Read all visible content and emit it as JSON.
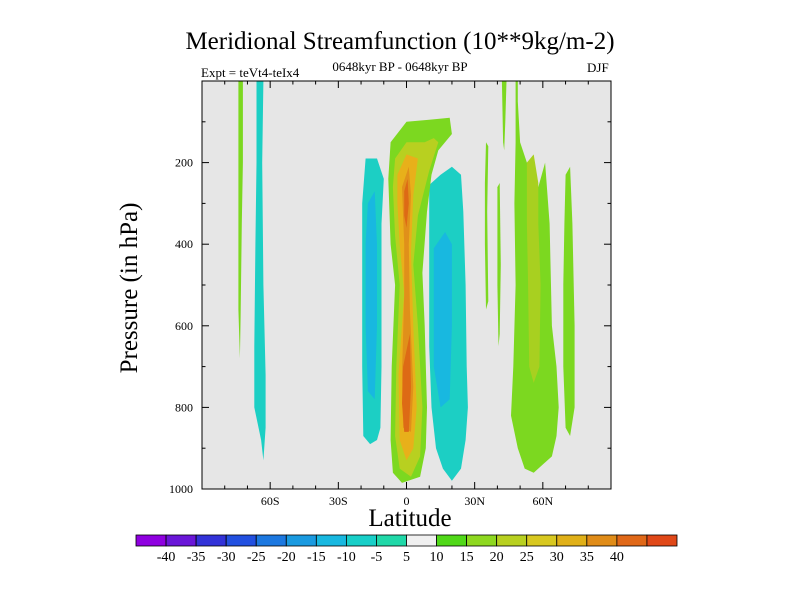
{
  "chart_data": {
    "type": "heatmap",
    "title": "Meridional Streamfunction (10**9kg/m-2)",
    "experiment_label": "Expt = teVt4-teIx4",
    "subtitle": "0648kyr BP - 0648kyr BP",
    "season": "DJF",
    "xlabel": "Latitude",
    "ylabel": "Pressure (in hPa)",
    "x_ticks": [
      "60S",
      "30S",
      "0",
      "30N",
      "60N"
    ],
    "x_tick_values": [
      -60,
      -30,
      0,
      30,
      60
    ],
    "xlim": [
      -90,
      90
    ],
    "y_ticks": [
      "200",
      "400",
      "600",
      "800",
      "1000"
    ],
    "y_tick_values": [
      200,
      400,
      600,
      800,
      1000
    ],
    "ylim": [
      1000,
      0
    ],
    "colorbar": {
      "labels": [
        "-40",
        "-35",
        "-30",
        "-25",
        "-20",
        "-15",
        "-10",
        "-5",
        "5",
        "10",
        "15",
        "20",
        "25",
        "30",
        "35",
        "40"
      ],
      "colors": [
        "#8f00e0",
        "#6a16d8",
        "#3232d8",
        "#2250e0",
        "#1c78e0",
        "#1a9ae0",
        "#18b8e0",
        "#18cfc8",
        "#20d8a8",
        "#f0f0f0",
        "#50d818",
        "#8ed820",
        "#b8d020",
        "#d8c820",
        "#e0b018",
        "#e08c18",
        "#e06818",
        "#e04818"
      ]
    },
    "regions": [
      {
        "name": "cell-70s-green",
        "value": 7,
        "color": "#7cd820",
        "points": [
          [
            -74,
            0
          ],
          [
            -72,
            0
          ],
          [
            -72,
            200
          ],
          [
            -72.5,
            350
          ],
          [
            -73,
            580
          ],
          [
            -73.3,
            680
          ],
          [
            -74,
            560
          ],
          [
            -74,
            300
          ]
        ]
      },
      {
        "name": "cell-65s-cyan",
        "value": -7,
        "color": "#1ccfc4",
        "points": [
          [
            -66,
            0
          ],
          [
            -63,
            0
          ],
          [
            -63.5,
            200
          ],
          [
            -63,
            500
          ],
          [
            -62,
            720
          ],
          [
            -62,
            850
          ],
          [
            -63,
            930
          ],
          [
            -64,
            880
          ],
          [
            -67,
            800
          ],
          [
            -67,
            650
          ],
          [
            -66.5,
            400
          ],
          [
            -66,
            200
          ]
        ]
      },
      {
        "name": "cell-20s-cyan",
        "value": -8,
        "color": "#1ccfc4",
        "points": [
          [
            -18,
            190
          ],
          [
            -13,
            190
          ],
          [
            -10,
            240
          ],
          [
            -11,
            350
          ],
          [
            -11,
            500
          ],
          [
            -11,
            700
          ],
          [
            -11.5,
            850
          ],
          [
            -13,
            880
          ],
          [
            -16,
            890
          ],
          [
            -19,
            870
          ],
          [
            -19.5,
            700
          ],
          [
            -19.5,
            500
          ],
          [
            -19.5,
            300
          ]
        ]
      },
      {
        "name": "cell-20s-inner",
        "value": -13,
        "color": "#18b8e0",
        "points": [
          [
            -17,
            300
          ],
          [
            -14,
            270
          ],
          [
            -13,
            400
          ],
          [
            -13,
            600
          ],
          [
            -14,
            780
          ],
          [
            -17,
            760
          ],
          [
            -18,
            600
          ],
          [
            -18,
            400
          ]
        ]
      },
      {
        "name": "cell-20n-cyan",
        "value": -8,
        "color": "#1ccfc4",
        "points": [
          [
            10,
            255
          ],
          [
            15,
            230
          ],
          [
            20,
            210
          ],
          [
            24,
            230
          ],
          [
            25,
            320
          ],
          [
            26,
            500
          ],
          [
            26.5,
            700
          ],
          [
            27,
            800
          ],
          [
            26,
            880
          ],
          [
            24,
            950
          ],
          [
            20,
            980
          ],
          [
            16,
            950
          ],
          [
            13,
            900
          ],
          [
            11,
            800
          ],
          [
            10,
            650
          ],
          [
            10,
            450
          ]
        ]
      },
      {
        "name": "cell-20n-inner",
        "value": -13,
        "color": "#18b8e0",
        "points": [
          [
            12,
            410
          ],
          [
            17,
            370
          ],
          [
            20,
            400
          ],
          [
            20,
            600
          ],
          [
            19,
            780
          ],
          [
            15,
            800
          ],
          [
            12,
            700
          ]
        ]
      },
      {
        "name": "cell-eq-band",
        "value": 8,
        "color": "#7cd820",
        "points": [
          [
            -7,
            150
          ],
          [
            0,
            100
          ],
          [
            10,
            95
          ],
          [
            19,
            90
          ],
          [
            20,
            130
          ],
          [
            14,
            170
          ],
          [
            11,
            230
          ],
          [
            9,
            320
          ],
          [
            7,
            470
          ],
          [
            8,
            600
          ],
          [
            9,
            800
          ],
          [
            8.5,
            900
          ],
          [
            6,
            970
          ],
          [
            -2,
            985
          ],
          [
            -6,
            960
          ],
          [
            -7,
            880
          ],
          [
            -6.5,
            700
          ],
          [
            -5,
            500
          ],
          [
            -7,
            400
          ],
          [
            -8,
            240
          ]
        ]
      },
      {
        "name": "cell-eq-yellow",
        "value": 14,
        "color": "#b8d020",
        "points": [
          [
            -5,
            190
          ],
          [
            0,
            150
          ],
          [
            8,
            150
          ],
          [
            12,
            140
          ],
          [
            14,
            150
          ],
          [
            10,
            220
          ],
          [
            5,
            330
          ],
          [
            3,
            450
          ],
          [
            5,
            600
          ],
          [
            7,
            800
          ],
          [
            6,
            920
          ],
          [
            2,
            970
          ],
          [
            -3,
            950
          ],
          [
            -5,
            870
          ],
          [
            -4.5,
            700
          ],
          [
            -3,
            500
          ],
          [
            -5,
            380
          ],
          [
            -6,
            260
          ]
        ]
      },
      {
        "name": "cell-eq-orange",
        "value": 22,
        "color": "#e8b01a",
        "points": [
          [
            -4,
            230
          ],
          [
            0,
            180
          ],
          [
            5,
            190
          ],
          [
            3,
            280
          ],
          [
            2,
            420
          ],
          [
            3,
            600
          ],
          [
            4.5,
            800
          ],
          [
            3,
            900
          ],
          [
            0,
            930
          ],
          [
            -3,
            880
          ],
          [
            -3.5,
            720
          ],
          [
            -1,
            520
          ],
          [
            -3,
            400
          ],
          [
            -4,
            300
          ]
        ]
      },
      {
        "name": "cell-eq-deep1",
        "value": 27,
        "color": "#e0901a",
        "points": [
          [
            -2,
            260
          ],
          [
            1,
            210
          ],
          [
            2,
            280
          ],
          [
            1,
            400
          ],
          [
            1.5,
            560
          ],
          [
            3,
            750
          ],
          [
            2,
            860
          ],
          [
            -1.5,
            850
          ],
          [
            -2,
            720
          ],
          [
            -1,
            520
          ],
          [
            -1,
            400
          ]
        ]
      },
      {
        "name": "cell-eq-deep2",
        "value": 33,
        "color": "#dd6a15",
        "points": [
          [
            -1.5,
            700
          ],
          [
            1.5,
            620
          ],
          [
            2,
            750
          ],
          [
            1,
            860
          ],
          [
            -1,
            860
          ],
          [
            -2,
            790
          ]
        ]
      },
      {
        "name": "cell-eq-deep3",
        "value": 33,
        "color": "#dd6a15",
        "points": [
          [
            -1,
            270
          ],
          [
            0.5,
            240
          ],
          [
            1,
            300
          ],
          [
            0,
            360
          ],
          [
            -1,
            330
          ]
        ]
      },
      {
        "name": "cell-30n-green",
        "value": 7,
        "color": "#7cd820",
        "points": [
          [
            35,
            150
          ],
          [
            36,
            160
          ],
          [
            35.5,
            320
          ],
          [
            36,
            540
          ],
          [
            35,
            560
          ],
          [
            34.5,
            400
          ],
          [
            34.5,
            250
          ]
        ]
      },
      {
        "name": "cell-37n-green",
        "value": 7,
        "color": "#7cd820",
        "points": [
          [
            40,
            260
          ],
          [
            41,
            250
          ],
          [
            41.5,
            450
          ],
          [
            41,
            620
          ],
          [
            40.5,
            650
          ],
          [
            40,
            500
          ]
        ]
      },
      {
        "name": "cell-43n-green",
        "value": 7,
        "color": "#7cd820",
        "points": [
          [
            44,
            0
          ],
          [
            42,
            0
          ],
          [
            42.5,
            150
          ],
          [
            43,
            170
          ],
          [
            43.5,
            100
          ]
        ]
      },
      {
        "name": "cell-55n-green",
        "value": 8,
        "color": "#7cd820",
        "points": [
          [
            48,
            0
          ],
          [
            49,
            0
          ],
          [
            49,
            50
          ],
          [
            50,
            150
          ],
          [
            53,
            200
          ],
          [
            56,
            250
          ],
          [
            58,
            260
          ],
          [
            61,
            200
          ],
          [
            63,
            350
          ],
          [
            64,
            600
          ],
          [
            66,
            700
          ],
          [
            67,
            800
          ],
          [
            66,
            870
          ],
          [
            64,
            920
          ],
          [
            60,
            940
          ],
          [
            56,
            960
          ],
          [
            52,
            950
          ],
          [
            49,
            900
          ],
          [
            46,
            820
          ],
          [
            47,
            700
          ],
          [
            48,
            500
          ],
          [
            47.5,
            300
          ],
          [
            48,
            150
          ]
        ]
      },
      {
        "name": "cell-55n-yellow",
        "value": 13,
        "color": "#a8d020",
        "points": [
          [
            53,
            200
          ],
          [
            56,
            180
          ],
          [
            58,
            250
          ],
          [
            58,
            350
          ],
          [
            59,
            500
          ],
          [
            58.5,
            700
          ],
          [
            56,
            740
          ],
          [
            54,
            700
          ],
          [
            53.5,
            500
          ],
          [
            53,
            350
          ]
        ]
      },
      {
        "name": "cell-72n-green",
        "value": 7,
        "color": "#7cd820",
        "points": [
          [
            70,
            230
          ],
          [
            72,
            210
          ],
          [
            73,
            350
          ],
          [
            74,
            600
          ],
          [
            74,
            800
          ],
          [
            72,
            870
          ],
          [
            70,
            850
          ],
          [
            69,
            700
          ],
          [
            69,
            500
          ],
          [
            69.5,
            350
          ]
        ]
      }
    ]
  }
}
